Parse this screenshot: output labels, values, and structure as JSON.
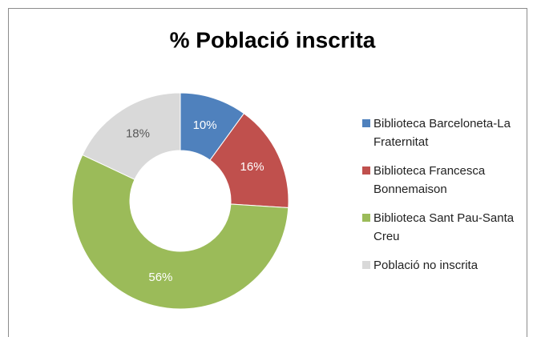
{
  "chart_data": {
    "type": "donut",
    "title": "% Població inscrita",
    "categories": [
      "Biblioteca Barceloneta-La Fraternitat",
      "Biblioteca Francesca Bonnemaison",
      "Biblioteca Sant Pau-Santa Creu",
      "Població no inscrita"
    ],
    "values": [
      10,
      16,
      56,
      18
    ],
    "value_labels": [
      "10%",
      "16%",
      "56%",
      "18%"
    ],
    "colors": [
      "#4f81bd",
      "#c0504d",
      "#9bbb59",
      "#d9d9d9"
    ],
    "legend": "right"
  }
}
